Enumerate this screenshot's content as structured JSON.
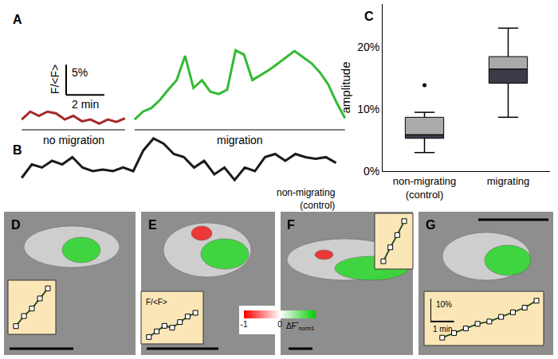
{
  "chart_data": [
    {
      "panel": "A",
      "type": "line",
      "ylabel": "F/<F>",
      "tick_labels": false,
      "xlim": [
        -0.3,
        17.2
      ],
      "ylim": [
        -0.6,
        12.8
      ],
      "scale_bar": {
        "x": 2,
        "x_label": "2 min",
        "y": 5,
        "y_label": "5%"
      },
      "series": [
        {
          "name": "no migration",
          "color": "#a52a2a",
          "x": [
            0,
            0.45,
            0.9,
            1.35,
            1.8,
            2.25,
            2.7,
            3.15,
            3.6,
            4.05,
            4.5,
            4.95,
            5.4
          ],
          "values": [
            0.7,
            2.0,
            1.3,
            2.0,
            1.7,
            0.7,
            1.3,
            0.4,
            0.7,
            0.0,
            0.7,
            0.3,
            0.9
          ]
        },
        {
          "name": "migration",
          "color": "#33bb33",
          "x": [
            5.9,
            6.34,
            6.78,
            7.22,
            7.66,
            8.1,
            8.54,
            8.98,
            9.42,
            9.86,
            10.3,
            10.74,
            11.18,
            11.62,
            12.06,
            12.5,
            12.94,
            13.38,
            13.82,
            14.26,
            14.7,
            15.14,
            15.58,
            16.02,
            16.46,
            16.9
          ],
          "values": [
            0.7,
            2.0,
            2.6,
            3.9,
            5.6,
            7.2,
            11.2,
            5.9,
            7.2,
            5.3,
            4.9,
            5.6,
            12.1,
            11.4,
            7.2,
            8.0,
            8.9,
            9.9,
            11.0,
            12.0,
            11.0,
            10.0,
            8.5,
            6.5,
            3.5,
            0.9
          ]
        }
      ]
    },
    {
      "panel": "B",
      "type": "line",
      "tick_labels": false,
      "xlim": [
        -0.3,
        17.2
      ],
      "ylim": [
        0,
        9.5
      ],
      "series": [
        {
          "name": "non-migrating\n(control)",
          "color": "#1a1a1a",
          "x": [
            0,
            0.53,
            1.06,
            1.59,
            2.12,
            2.65,
            3.18,
            3.71,
            4.24,
            4.77,
            5.3,
            5.83,
            6.36,
            6.89,
            7.42,
            7.95,
            8.48,
            9.01,
            9.54,
            10.07,
            10.6,
            11.13,
            11.66,
            12.19,
            12.72,
            13.25,
            13.78,
            14.31,
            14.84,
            15.37,
            15.9,
            16.43
          ],
          "values": [
            1.3,
            3.9,
            3.3,
            4.6,
            3.9,
            5.3,
            3.3,
            2.6,
            2.9,
            2.6,
            3.3,
            2.6,
            6.6,
            8.9,
            7.9,
            5.9,
            5.3,
            3.3,
            4.6,
            2.0,
            3.3,
            0.9,
            3.3,
            2.6,
            5.3,
            5.9,
            4.6,
            5.9,
            5.3,
            5.0,
            5.3,
            4.2
          ]
        }
      ]
    },
    {
      "panel": "C",
      "type": "box",
      "color": "#aaaaaa",
      "categories": [
        "non-migrating\n(control)",
        "migrating"
      ],
      "stats": [
        {
          "min": 3.0,
          "q1": 5.3,
          "median": 5.9,
          "q3": 8.7,
          "max": 9.5,
          "outliers": [
            13.9
          ]
        },
        {
          "min": 8.7,
          "q1": 14.2,
          "median": 16.5,
          "q3": 18.5,
          "max": 23.1
        }
      ],
      "ylabel": "amplitude",
      "ylim": [
        0,
        27
      ],
      "yticks": [
        {
          "value": 0,
          "label": "0%"
        },
        {
          "value": 10,
          "label": "10%"
        },
        {
          "value": 20,
          "label": "20%"
        }
      ]
    },
    {
      "panel": "D",
      "type": "line",
      "marker": "square",
      "color": "#1f4a1f",
      "tick_labels": false,
      "x": [
        0,
        0.5,
        1,
        1.5,
        2
      ],
      "values": [
        0,
        4,
        7,
        11,
        15
      ],
      "xlim": [
        -0.3,
        2.3
      ],
      "ylim": [
        -2,
        17
      ]
    },
    {
      "panel": "E",
      "type": "line",
      "marker": "square",
      "color": "#1f4a1f",
      "tick_labels": false,
      "ylabel": "F/<F>",
      "x": [
        0,
        0.5,
        1,
        1.5,
        2,
        2.5,
        3
      ],
      "values": [
        0,
        3,
        6,
        5,
        8,
        11,
        13
      ],
      "xlim": [
        -0.3,
        3.3
      ],
      "ylim": [
        -2,
        22
      ]
    },
    {
      "panel": "E",
      "type": "colorbar",
      "range": [
        -1,
        1
      ],
      "ticks": [
        -1,
        0
      ],
      "label": "ΔF",
      "label_sup": "*",
      "label_sub": "norm1",
      "colors": [
        "#ff0000",
        "#ffffff",
        "#00cc00"
      ]
    },
    {
      "panel": "F",
      "type": "line",
      "marker": "square",
      "color": "#1f4a1f",
      "tick_labels": false,
      "x": [
        0,
        0.5,
        1,
        1.5
      ],
      "values": [
        0,
        9,
        17,
        26
      ],
      "xlim": [
        -0.4,
        1.9
      ],
      "ylim": [
        -3,
        29
      ]
    },
    {
      "panel": "G",
      "type": "line",
      "marker": "square",
      "color": "#1f4a1f",
      "tick_labels": false,
      "x": [
        0,
        0.5,
        1,
        1.5,
        2,
        2.5,
        3,
        3.5,
        4
      ],
      "values": [
        0,
        2,
        4,
        6,
        7,
        9,
        11,
        13,
        16
      ],
      "xlim": [
        -0.5,
        4.17
      ],
      "ylim": [
        -2,
        18
      ],
      "scale_bar": {
        "x": 1,
        "x_label": "1 min",
        "y": 10,
        "y_label": "10%"
      }
    }
  ]
}
